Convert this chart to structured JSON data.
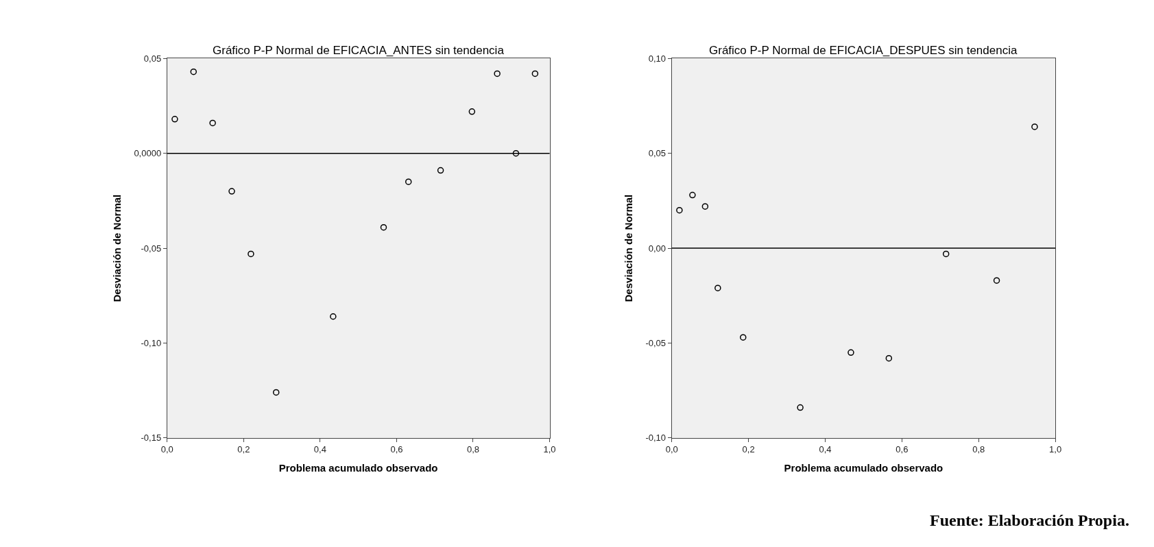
{
  "chart_data": [
    {
      "type": "scatter",
      "title": "Gráfico P-P Normal de EFICACIA_ANTES sin tendencia",
      "xlabel": "Problema acumulado observado",
      "ylabel": "Desviación de Normal",
      "x": [
        0.02,
        0.069,
        0.119,
        0.169,
        0.219,
        0.285,
        0.434,
        0.566,
        0.631,
        0.715,
        0.797,
        0.863,
        0.912,
        0.962
      ],
      "series": [
        {
          "color": "#000000",
          "values": [
            0.018,
            0.043,
            0.016,
            -0.02,
            -0.053,
            -0.126,
            -0.086,
            -0.039,
            -0.015,
            -0.009,
            0.022,
            0.042,
            0.0,
            0.042
          ]
        }
      ],
      "xlim": [
        0,
        1
      ],
      "ylim": [
        -0.15,
        0.05
      ],
      "xticks": [
        {
          "value": 0,
          "label": "0,0"
        },
        {
          "value": 0.2,
          "label": "0,2"
        },
        {
          "value": 0.4,
          "label": "0,4"
        },
        {
          "value": 0.6,
          "label": "0,6"
        },
        {
          "value": 0.8,
          "label": "0,8"
        },
        {
          "value": 1,
          "label": "1,0"
        }
      ],
      "yticks": [
        {
          "value": -0.15,
          "label": "-0,15"
        },
        {
          "value": -0.1,
          "label": "-0,10"
        },
        {
          "value": -0.05,
          "label": "-0,05"
        },
        {
          "value": 0,
          "label": "0,0000"
        },
        {
          "value": 0.05,
          "label": "0,05"
        }
      ],
      "ref_lines": [
        {
          "axis": "y",
          "value": 0,
          "color": "#000000"
        }
      ],
      "grid": false,
      "marker": "circle"
    },
    {
      "type": "scatter",
      "title": "Gráfico P-P Normal de EFICACIA_DESPUES sin tendencia",
      "xlabel": "Problema acumulado observado",
      "ylabel": "Desviación de Normal",
      "x": [
        0.02,
        0.054,
        0.087,
        0.12,
        0.186,
        0.335,
        0.467,
        0.566,
        0.715,
        0.847,
        0.946
      ],
      "series": [
        {
          "color": "#000000",
          "values": [
            0.02,
            0.028,
            0.022,
            -0.021,
            -0.047,
            -0.084,
            -0.055,
            -0.058,
            -0.003,
            -0.017,
            0.064
          ]
        }
      ],
      "xlim": [
        0,
        1
      ],
      "ylim": [
        -0.1,
        0.1
      ],
      "xticks": [
        {
          "value": 0,
          "label": "0,0"
        },
        {
          "value": 0.2,
          "label": "0,2"
        },
        {
          "value": 0.4,
          "label": "0,4"
        },
        {
          "value": 0.6,
          "label": "0,6"
        },
        {
          "value": 0.8,
          "label": "0,8"
        },
        {
          "value": 1,
          "label": "1,0"
        }
      ],
      "yticks": [
        {
          "value": -0.1,
          "label": "-0,10"
        },
        {
          "value": -0.05,
          "label": "-0,05"
        },
        {
          "value": 0,
          "label": "0,00"
        },
        {
          "value": 0.05,
          "label": "0,05"
        },
        {
          "value": 0.1,
          "label": "0,10"
        }
      ],
      "ref_lines": [
        {
          "axis": "y",
          "value": 0,
          "color": "#000000"
        }
      ],
      "annotations": [
        "Fuente: Elaboración Propia."
      ],
      "grid": false,
      "marker": "circle"
    }
  ]
}
